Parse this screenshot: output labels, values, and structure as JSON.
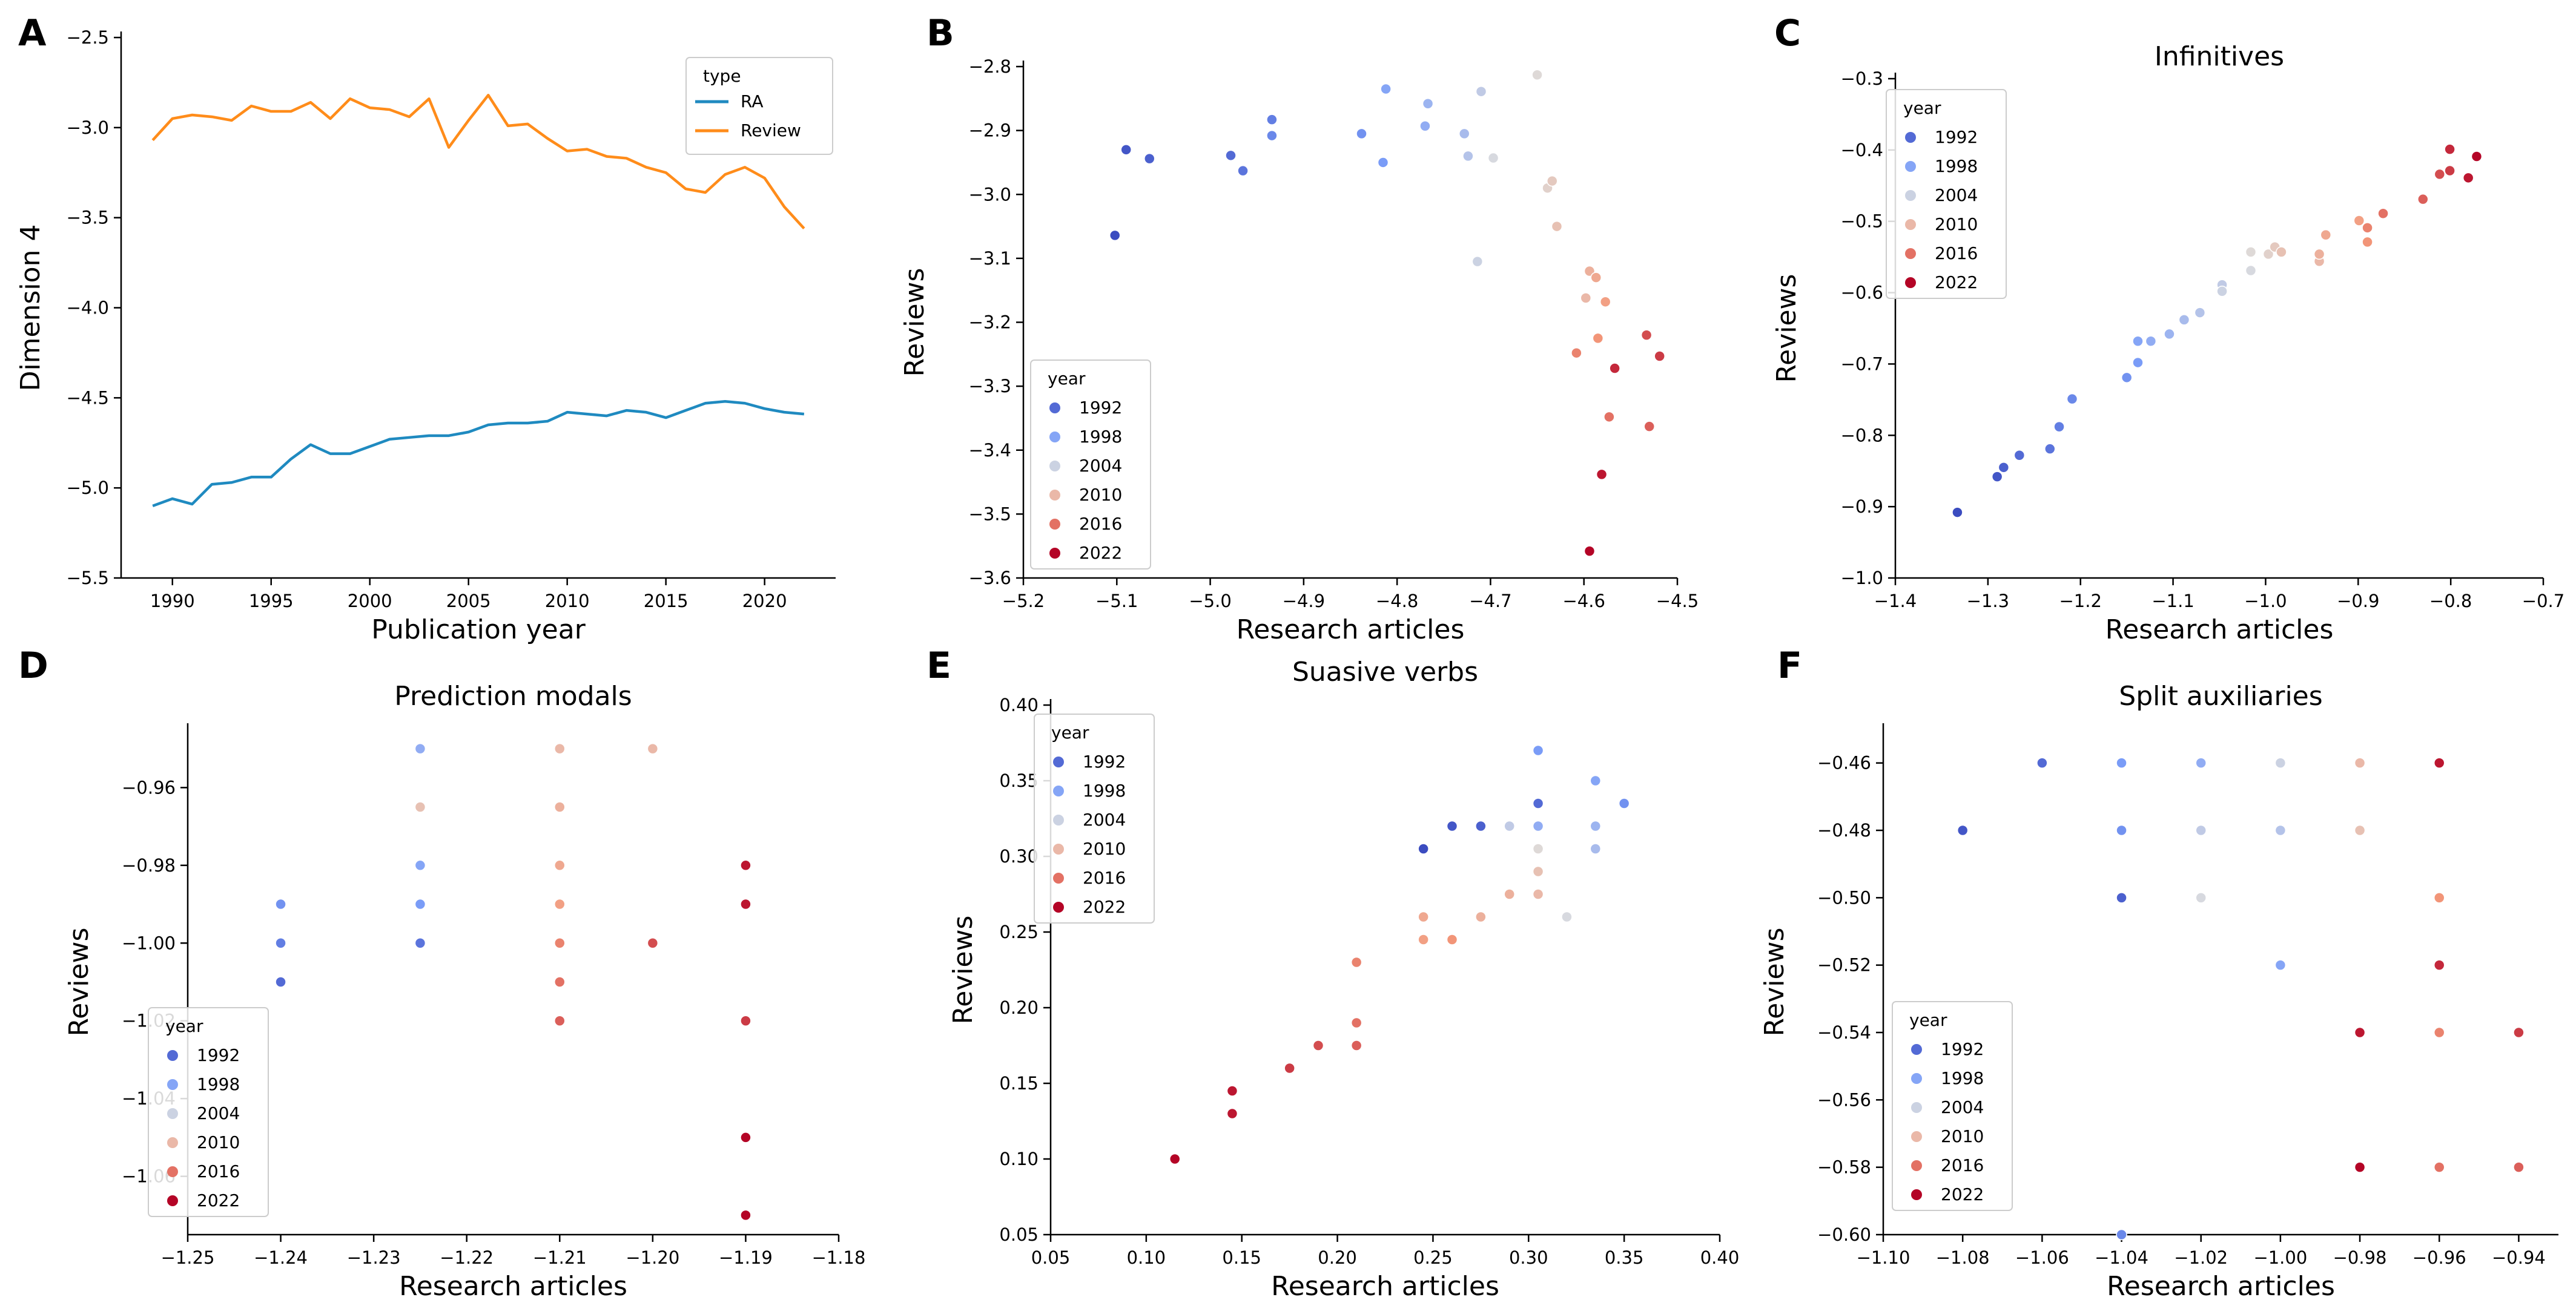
{
  "figure": {
    "panel_letters": [
      "A",
      "B",
      "C",
      "D",
      "E",
      "F"
    ]
  },
  "chart_data": [
    {
      "id": "A",
      "type": "line",
      "title": "",
      "xlabel": "Publication year",
      "ylabel": "Dimension 4",
      "xlim": [
        1987.4,
        2023.6
      ],
      "ylim": [
        -5.5,
        -2.5
      ],
      "xticks": [
        1990,
        1995,
        2000,
        2005,
        2010,
        2015,
        2020
      ],
      "yticks": [
        -5.5,
        -5.0,
        -4.5,
        -4.0,
        -3.5,
        -3.0,
        -2.5
      ],
      "xtick_labels": [
        "1990",
        "1995",
        "2000",
        "2005",
        "2010",
        "2015",
        "2020"
      ],
      "ytick_labels": [
        "−5.5",
        "−5.0",
        "−4.5",
        "−4.0",
        "−3.5",
        "−3.0",
        "−2.5"
      ],
      "legend": {
        "title": "type",
        "position": "top-right"
      },
      "x": [
        1989,
        1990,
        1991,
        1992,
        1993,
        1994,
        1995,
        1996,
        1997,
        1998,
        1999,
        2000,
        2001,
        2002,
        2003,
        2004,
        2005,
        2006,
        2007,
        2008,
        2009,
        2010,
        2011,
        2012,
        2013,
        2014,
        2015,
        2016,
        2017,
        2018,
        2019,
        2020,
        2021,
        2022
      ],
      "series": [
        {
          "name": "RA",
          "color": "#1f8ac0",
          "values": [
            -5.1,
            -5.06,
            -5.09,
            -4.98,
            -4.97,
            -4.94,
            -4.94,
            -4.84,
            -4.76,
            -4.81,
            -4.81,
            -4.77,
            -4.73,
            -4.72,
            -4.71,
            -4.71,
            -4.69,
            -4.65,
            -4.64,
            -4.64,
            -4.63,
            -4.58,
            -4.59,
            -4.6,
            -4.57,
            -4.58,
            -4.61,
            -4.57,
            -4.53,
            -4.52,
            -4.53,
            -4.56,
            -4.58,
            -4.59
          ]
        },
        {
          "name": "Review",
          "color": "#ff8c1a",
          "values": [
            -3.07,
            -2.95,
            -2.93,
            -2.94,
            -2.96,
            -2.88,
            -2.91,
            -2.91,
            -2.86,
            -2.95,
            -2.84,
            -2.89,
            -2.9,
            -2.94,
            -2.84,
            -3.11,
            -2.96,
            -2.82,
            -2.99,
            -2.98,
            -3.06,
            -3.13,
            -3.12,
            -3.16,
            -3.17,
            -3.22,
            -3.25,
            -3.34,
            -3.36,
            -3.26,
            -3.22,
            -3.28,
            -3.44,
            -3.56
          ]
        }
      ]
    },
    {
      "id": "B",
      "type": "scatter",
      "title": "",
      "xlabel": "Research articles",
      "ylabel": "Reviews",
      "xlim": [
        -5.2,
        -4.5
      ],
      "ylim": [
        -3.6,
        -2.8
      ],
      "xticks": [
        -5.2,
        -5.1,
        -5.0,
        -4.9,
        -4.8,
        -4.7,
        -4.6,
        -4.5
      ],
      "yticks": [
        -3.6,
        -3.5,
        -3.4,
        -3.3,
        -3.2,
        -3.1,
        -3.0,
        -2.9,
        -2.8
      ],
      "xtick_labels": [
        "−5.2",
        "−5.1",
        "−5.0",
        "−4.9",
        "−4.8",
        "−4.7",
        "−4.6",
        "−4.5"
      ],
      "ytick_labels": [
        "−3.6",
        "−3.5",
        "−3.4",
        "−3.3",
        "−3.2",
        "−3.1",
        "−3.0",
        "−2.9",
        "−2.8"
      ],
      "legend": {
        "title": "year",
        "position": "bottom-left",
        "entries": [
          "1992",
          "1998",
          "2004",
          "2010",
          "2016",
          "2022"
        ]
      },
      "points": [
        [
          -5.102,
          -3.064,
          1989
        ],
        [
          -5.09,
          -2.93,
          1990
        ],
        [
          -5.065,
          -2.944,
          1991
        ],
        [
          -4.978,
          -2.939,
          1992
        ],
        [
          -4.965,
          -2.963,
          1993
        ],
        [
          -4.934,
          -2.883,
          1994
        ],
        [
          -4.934,
          -2.908,
          1995
        ],
        [
          -4.838,
          -2.905,
          1996
        ],
        [
          -4.815,
          -2.95,
          1997
        ],
        [
          -4.812,
          -2.835,
          1998
        ],
        [
          -4.77,
          -2.893,
          1999
        ],
        [
          -4.767,
          -2.858,
          2000
        ],
        [
          -4.728,
          -2.905,
          2001
        ],
        [
          -4.724,
          -2.94,
          2002
        ],
        [
          -4.71,
          -2.839,
          2003
        ],
        [
          -4.714,
          -3.105,
          2004
        ],
        [
          -4.697,
          -2.943,
          2005
        ],
        [
          -4.65,
          -2.813,
          2006
        ],
        [
          -4.639,
          -2.99,
          2007
        ],
        [
          -4.634,
          -2.979,
          2008
        ],
        [
          -4.629,
          -3.05,
          2009
        ],
        [
          -4.598,
          -3.162,
          2010
        ],
        [
          -4.594,
          -3.12,
          2011
        ],
        [
          -4.587,
          -3.13,
          2012
        ],
        [
          -4.577,
          -3.168,
          2013
        ],
        [
          -4.585,
          -3.225,
          2014
        ],
        [
          -4.608,
          -3.248,
          2015
        ],
        [
          -4.573,
          -3.348,
          2016
        ],
        [
          -4.53,
          -3.363,
          2017
        ],
        [
          -4.533,
          -3.22,
          2018
        ],
        [
          -4.519,
          -3.253,
          2019
        ],
        [
          -4.567,
          -3.272,
          2020
        ],
        [
          -4.581,
          -3.438,
          2021
        ],
        [
          -4.594,
          -3.558,
          2022
        ]
      ]
    },
    {
      "id": "C",
      "type": "scatter",
      "title": "Infinitives",
      "xlabel": "Research articles",
      "ylabel": "Reviews",
      "xlim": [
        -1.4,
        -0.7
      ],
      "ylim": [
        -1.0,
        -0.3
      ],
      "xticks": [
        -1.4,
        -1.3,
        -1.2,
        -1.1,
        -1.0,
        -0.9,
        -0.8,
        -0.7
      ],
      "yticks": [
        -1.0,
        -0.9,
        -0.8,
        -0.7,
        -0.6,
        -0.5,
        -0.4,
        -0.3
      ],
      "xtick_labels": [
        "−1.4",
        "−1.3",
        "−1.2",
        "−1.1",
        "−1.0",
        "−0.9",
        "−0.8",
        "−0.7"
      ],
      "ytick_labels": [
        "−1.0",
        "−0.9",
        "−0.8",
        "−0.7",
        "−0.6",
        "−0.5",
        "−0.4",
        "−0.3"
      ],
      "legend": {
        "title": "year",
        "position": "top-left",
        "entries": [
          "1992",
          "1998",
          "2004",
          "2010",
          "2016",
          "2022"
        ]
      },
      "points": [
        [
          -1.333,
          -0.908,
          1989
        ],
        [
          -1.29,
          -0.858,
          1990
        ],
        [
          -1.283,
          -0.845,
          1991
        ],
        [
          -1.266,
          -0.828,
          1992
        ],
        [
          -1.233,
          -0.819,
          1993
        ],
        [
          -1.223,
          -0.788,
          1994
        ],
        [
          -1.209,
          -0.749,
          1995
        ],
        [
          -1.15,
          -0.719,
          1996
        ],
        [
          -1.138,
          -0.698,
          1997
        ],
        [
          -1.138,
          -0.668,
          1998
        ],
        [
          -1.124,
          -0.668,
          1999
        ],
        [
          -1.104,
          -0.658,
          2000
        ],
        [
          -1.088,
          -0.638,
          2001
        ],
        [
          -1.071,
          -0.628,
          2002
        ],
        [
          -1.047,
          -0.589,
          2003
        ],
        [
          -1.047,
          -0.598,
          2004
        ],
        [
          -1.016,
          -0.569,
          2005
        ],
        [
          -1.016,
          -0.543,
          2006
        ],
        [
          -0.997,
          -0.546,
          2007
        ],
        [
          -0.99,
          -0.536,
          2008
        ],
        [
          -0.983,
          -0.543,
          2009
        ],
        [
          -0.942,
          -0.556,
          2010
        ],
        [
          -0.942,
          -0.546,
          2011
        ],
        [
          -0.935,
          -0.519,
          2012
        ],
        [
          -0.899,
          -0.499,
          2013
        ],
        [
          -0.89,
          -0.529,
          2014
        ],
        [
          -0.89,
          -0.509,
          2015
        ],
        [
          -0.873,
          -0.489,
          2016
        ],
        [
          -0.83,
          -0.469,
          2017
        ],
        [
          -0.812,
          -0.434,
          2018
        ],
        [
          -0.801,
          -0.429,
          2019
        ],
        [
          -0.801,
          -0.399,
          2020
        ],
        [
          -0.781,
          -0.439,
          2021
        ],
        [
          -0.772,
          -0.409,
          2022
        ]
      ]
    },
    {
      "id": "D",
      "type": "scatter",
      "title": "Prediction modals",
      "xlabel": "Research articles",
      "ylabel": "Reviews",
      "xlim": [
        -1.25,
        -1.18
      ],
      "ylim": [
        -1.075,
        -0.945
      ],
      "xticks": [
        -1.25,
        -1.24,
        -1.23,
        -1.22,
        -1.21,
        -1.2,
        -1.19,
        -1.18
      ],
      "yticks": [
        -1.06,
        -1.04,
        -1.02,
        -1.0,
        -0.98,
        -0.96
      ],
      "xtick_labels": [
        "−1.25",
        "−1.24",
        "−1.23",
        "−1.22",
        "−1.21",
        "−1.20",
        "−1.19",
        "−1.18"
      ],
      "ytick_labels": [
        "−1.06",
        "−1.04",
        "−1.02",
        "−1.00",
        "−0.98",
        "−0.96"
      ],
      "legend": {
        "title": "year",
        "position": "bottom-left",
        "entries": [
          "1992",
          "1998",
          "2004",
          "2010",
          "2016",
          "2022"
        ]
      },
      "points": [
        [
          -1.24,
          -1.01,
          1992
        ],
        [
          -1.24,
          -1.0,
          1994
        ],
        [
          -1.24,
          -0.99,
          1996
        ],
        [
          -1.225,
          -1.0,
          1993
        ],
        [
          -1.225,
          -0.99,
          1997
        ],
        [
          -1.225,
          -0.98,
          1998
        ],
        [
          -1.225,
          -0.95,
          1999
        ],
        [
          -1.225,
          -0.965,
          2009
        ],
        [
          -1.21,
          -0.95,
          2010
        ],
        [
          -1.21,
          -0.965,
          2011
        ],
        [
          -1.21,
          -0.98,
          2012
        ],
        [
          -1.21,
          -0.99,
          2013
        ],
        [
          -1.21,
          -1.0,
          2015
        ],
        [
          -1.21,
          -1.01,
          2016
        ],
        [
          -1.21,
          -1.02,
          2017
        ],
        [
          -1.2,
          -0.95,
          2010
        ],
        [
          -1.2,
          -1.0,
          2018
        ],
        [
          -1.19,
          -0.98,
          2021
        ],
        [
          -1.19,
          -0.99,
          2021
        ],
        [
          -1.19,
          -1.02,
          2019
        ],
        [
          -1.19,
          -1.05,
          2022
        ],
        [
          -1.19,
          -1.07,
          2022
        ]
      ]
    },
    {
      "id": "E",
      "type": "scatter",
      "title": "Suasive verbs",
      "xlabel": "Research articles",
      "ylabel": "Reviews",
      "xlim": [
        0.05,
        0.4
      ],
      "ylim": [
        0.05,
        0.4
      ],
      "xticks": [
        0.05,
        0.1,
        0.15,
        0.2,
        0.25,
        0.3,
        0.35,
        0.4
      ],
      "yticks": [
        0.05,
        0.1,
        0.15,
        0.2,
        0.25,
        0.3,
        0.35,
        0.4
      ],
      "xtick_labels": [
        "0.05",
        "0.10",
        "0.15",
        "0.20",
        "0.25",
        "0.30",
        "0.35",
        "0.40"
      ],
      "ytick_labels": [
        "0.05",
        "0.10",
        "0.15",
        "0.20",
        "0.25",
        "0.30",
        "0.35",
        "0.40"
      ],
      "legend": {
        "title": "year",
        "position": "top-left",
        "entries": [
          "1992",
          "1998",
          "2004",
          "2010",
          "2016",
          "2022"
        ]
      },
      "points": [
        [
          0.245,
          0.305,
          1989
        ],
        [
          0.26,
          0.32,
          1990
        ],
        [
          0.275,
          0.32,
          1991
        ],
        [
          0.305,
          0.335,
          1992
        ],
        [
          0.305,
          0.37,
          1997
        ],
        [
          0.335,
          0.35,
          1998
        ],
        [
          0.35,
          0.335,
          1996
        ],
        [
          0.305,
          0.32,
          1999
        ],
        [
          0.335,
          0.32,
          2000
        ],
        [
          0.335,
          0.305,
          2001
        ],
        [
          0.29,
          0.32,
          2003
        ],
        [
          0.32,
          0.26,
          2005
        ],
        [
          0.305,
          0.305,
          2006
        ],
        [
          0.305,
          0.29,
          2009
        ],
        [
          0.305,
          0.275,
          2010
        ],
        [
          0.29,
          0.275,
          2011
        ],
        [
          0.245,
          0.26,
          2012
        ],
        [
          0.245,
          0.245,
          2013
        ],
        [
          0.26,
          0.245,
          2014
        ],
        [
          0.275,
          0.26,
          2011
        ],
        [
          0.21,
          0.23,
          2015
        ],
        [
          0.21,
          0.19,
          2016
        ],
        [
          0.21,
          0.175,
          2017
        ],
        [
          0.19,
          0.175,
          2018
        ],
        [
          0.175,
          0.16,
          2019
        ],
        [
          0.145,
          0.145,
          2021
        ],
        [
          0.145,
          0.13,
          2021
        ],
        [
          0.115,
          0.1,
          2022
        ]
      ]
    },
    {
      "id": "F",
      "type": "scatter",
      "title": "Split auxiliaries",
      "xlabel": "Research articles",
      "ylabel": "Reviews",
      "xlim": [
        -1.1,
        -0.93
      ],
      "ylim": [
        -0.6,
        -0.45
      ],
      "xticks": [
        -1.1,
        -1.08,
        -1.06,
        -1.04,
        -1.02,
        -1.0,
        -0.98,
        -0.96,
        -0.94
      ],
      "yticks": [
        -0.6,
        -0.58,
        -0.56,
        -0.54,
        -0.52,
        -0.5,
        -0.48,
        -0.46
      ],
      "xtick_labels": [
        "−1.10",
        "−1.08",
        "−1.06",
        "−1.04",
        "−1.02",
        "−1.00",
        "−0.98",
        "−0.96",
        "−0.94"
      ],
      "ytick_labels": [
        "−0.60",
        "−0.58",
        "−0.56",
        "−0.54",
        "−0.52",
        "−0.50",
        "−0.48",
        "−0.46"
      ],
      "legend": {
        "title": "year",
        "position": "bottom-left",
        "entries": [
          "1992",
          "1998",
          "2004",
          "2010",
          "2016",
          "2022"
        ]
      },
      "points": [
        [
          -1.08,
          -0.48,
          1990
        ],
        [
          -1.06,
          -0.46,
          1992
        ],
        [
          -1.04,
          -0.5,
          1991
        ],
        [
          -1.04,
          -0.46,
          1997
        ],
        [
          -1.04,
          -0.48,
          1996
        ],
        [
          -1.04,
          -0.6,
          1995
        ],
        [
          -1.02,
          -0.46,
          1999
        ],
        [
          -1.02,
          -0.48,
          2003
        ],
        [
          -1.02,
          -0.5,
          2005
        ],
        [
          -1.0,
          -0.46,
          2004
        ],
        [
          -1.0,
          -0.48,
          2002
        ],
        [
          -1.0,
          -0.52,
          1998
        ],
        [
          -0.98,
          -0.46,
          2010
        ],
        [
          -0.98,
          -0.48,
          2009
        ],
        [
          -0.98,
          -0.54,
          2021
        ],
        [
          -0.98,
          -0.58,
          2022
        ],
        [
          -0.96,
          -0.46,
          2021
        ],
        [
          -0.96,
          -0.5,
          2014
        ],
        [
          -0.96,
          -0.52,
          2020
        ],
        [
          -0.96,
          -0.54,
          2015
        ],
        [
          -0.96,
          -0.58,
          2016
        ],
        [
          -0.94,
          -0.54,
          2019
        ],
        [
          -0.94,
          -0.58,
          2017
        ]
      ]
    }
  ]
}
